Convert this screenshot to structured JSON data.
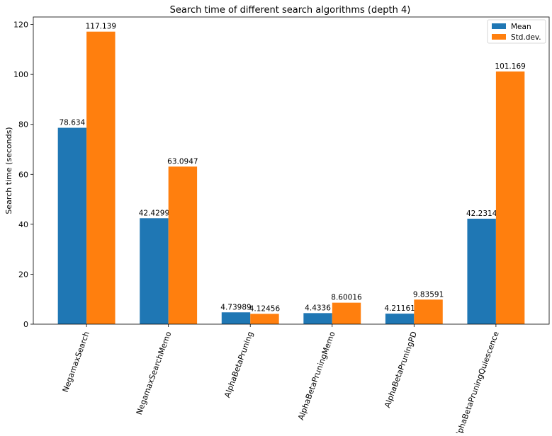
{
  "chart_data": {
    "type": "bar",
    "title": "Search time of different search algorithms (depth 4)",
    "xlabel": "",
    "ylabel": "Search time (seconds)",
    "ylim": [
      0,
      123
    ],
    "yticks": [
      0,
      20,
      40,
      60,
      80,
      100,
      120
    ],
    "categories": [
      "NegamaxSearch",
      "NegamaxSearchMemo",
      "AlphaBetaPruning",
      "AlphaBetaPruningMemo",
      "AlphaBetaPruningPD",
      "AlphaBetaPruningQuiescence"
    ],
    "series": [
      {
        "name": "Mean",
        "color": "#1f77b4",
        "values": [
          78.634,
          42.4299,
          4.73989,
          4.4336,
          4.21161,
          42.2314
        ],
        "labels": [
          "78.634",
          "42.4299",
          "4.73989",
          "4.4336",
          "4.21161",
          "42.2314"
        ]
      },
      {
        "name": "Std.dev.",
        "color": "#ff7f0e",
        "values": [
          117.139,
          63.0947,
          4.12456,
          8.60016,
          9.83591,
          101.169
        ],
        "labels": [
          "117.139",
          "63.0947",
          "4.12456",
          "8.60016",
          "9.83591",
          "101.169"
        ]
      }
    ],
    "legend_position": "top-right",
    "grid": false
  }
}
